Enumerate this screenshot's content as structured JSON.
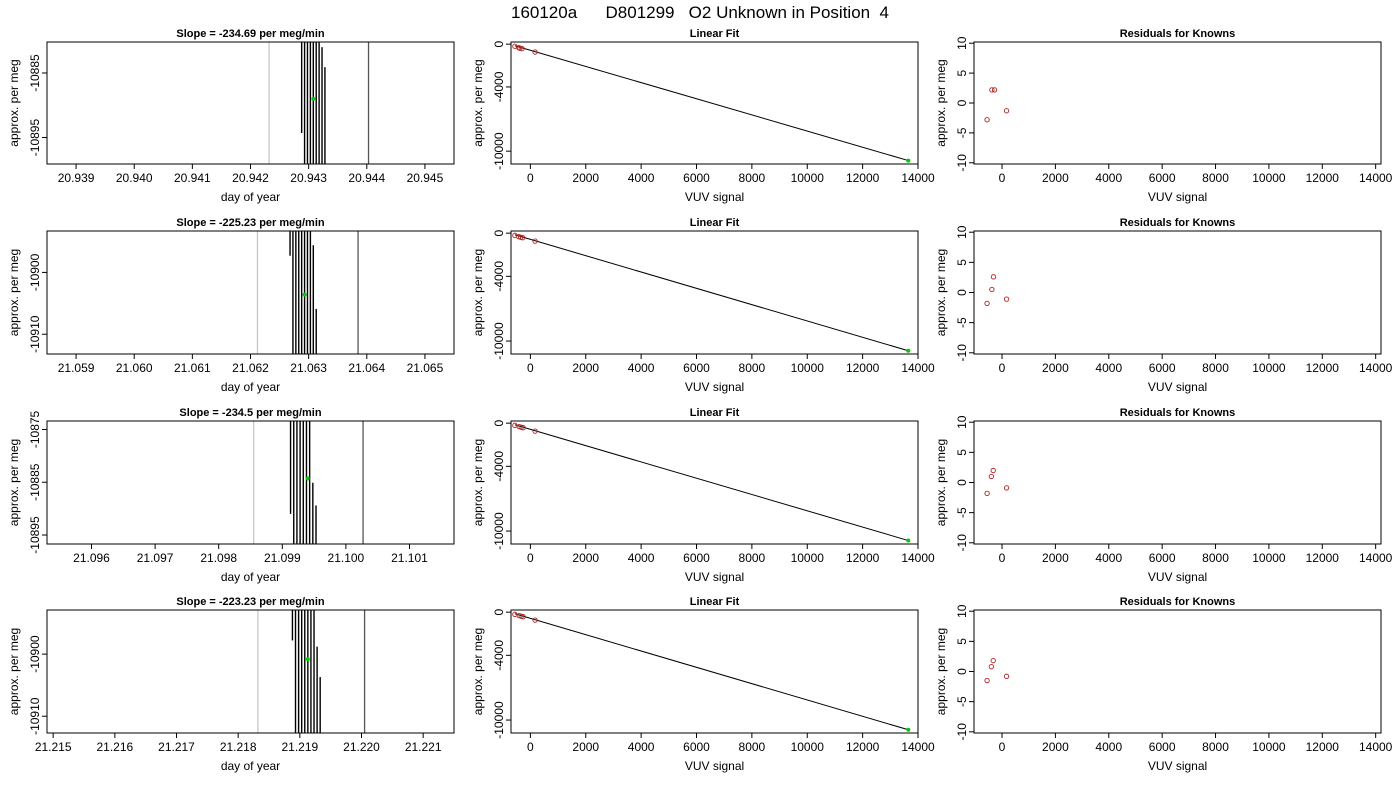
{
  "page_title": "160120a      D801299   O2 Unknown in Position  4",
  "chart_data": [
    {
      "type": "bar",
      "panel": "time",
      "row": 0,
      "title": "Slope =  -234.69  per meg/min",
      "xlabel": "day of year",
      "ylabel": "approx. per meg",
      "xlim": [
        20.9385,
        20.9455
      ],
      "ylim": [
        -10899.1,
        -10880.2
      ],
      "xticks": [
        20.939,
        20.94,
        20.941,
        20.942,
        20.943,
        20.944,
        20.945
      ],
      "xtick_labels": [
        "20.939",
        "20.940",
        "20.941",
        "20.942",
        "20.943",
        "20.944",
        "20.945"
      ],
      "yticks": [
        -10885,
        -10895
      ],
      "ytick_labels": [
        "-10885",
        "-10895"
      ],
      "vlines": [
        {
          "x": 20.94232,
          "color": "#c8c8c8"
        },
        {
          "x": 20.94403,
          "color": "#555555"
        }
      ],
      "bars": [
        {
          "x": 20.94288,
          "y0": -10880.2,
          "y1": -10894.3
        },
        {
          "x": 20.94293,
          "y0": -10880.2,
          "y1": -10899.1
        },
        {
          "x": 20.94298,
          "y0": -10880.2,
          "y1": -10899.1
        },
        {
          "x": 20.94303,
          "y0": -10880.2,
          "y1": -10899.1
        },
        {
          "x": 20.94308,
          "y0": -10880.2,
          "y1": -10899.1
        },
        {
          "x": 20.94313,
          "y0": -10880.2,
          "y1": -10899.1
        },
        {
          "x": 20.94318,
          "y0": -10880.2,
          "y1": -10899.1
        },
        {
          "x": 20.94323,
          "y0": -10881.0,
          "y1": -10899.1
        },
        {
          "x": 20.94328,
          "y0": -10884.1,
          "y1": -10899.1
        }
      ],
      "marker": {
        "x": 20.94308,
        "y": -10889.0,
        "color": "#00cc00"
      }
    },
    {
      "type": "scatter",
      "panel": "fit",
      "row": 0,
      "title": "Linear Fit",
      "xlabel": "VUV signal",
      "ylabel": "approx. per meg",
      "xlim": [
        -700,
        14000
      ],
      "ylim": [
        -11200,
        200
      ],
      "xticks": [
        0,
        2000,
        4000,
        6000,
        8000,
        10000,
        12000,
        14000
      ],
      "xtick_labels": [
        "0",
        "2000",
        "4000",
        "6000",
        "8000",
        "10000",
        "12000",
        "14000"
      ],
      "yticks": [
        0,
        -4000,
        -10000
      ],
      "ytick_labels": [
        "0",
        "-4000",
        "-10000"
      ],
      "points": [
        [
          -560,
          -200
        ],
        [
          -420,
          -330
        ],
        [
          -380,
          -380
        ],
        [
          -300,
          -420
        ],
        [
          170,
          -740
        ]
      ],
      "line": [
        [
          -560,
          -150
        ],
        [
          13650,
          -10880
        ]
      ],
      "unknown": [
        13650,
        -10880
      ]
    },
    {
      "type": "scatter",
      "panel": "resid",
      "row": 0,
      "title": "Residuals for Knowns",
      "xlabel": "VUV signal",
      "ylabel": "approx. per meg",
      "xlim": [
        -1050,
        14200
      ],
      "ylim": [
        -10.2,
        10.2
      ],
      "xticks": [
        0,
        2000,
        4000,
        6000,
        8000,
        10000,
        12000,
        14000
      ],
      "xtick_labels": [
        "0",
        "2000",
        "4000",
        "6000",
        "8000",
        "10000",
        "12000",
        "14000"
      ],
      "yticks": [
        10,
        5,
        0,
        -5,
        -10
      ],
      "ytick_labels": [
        "10",
        "5",
        "0",
        "-5",
        "-10"
      ],
      "points": [
        [
          -560,
          -2.8
        ],
        [
          -380,
          2.2
        ],
        [
          -280,
          2.2
        ],
        [
          170,
          -1.3
        ]
      ]
    },
    {
      "type": "bar",
      "panel": "time",
      "row": 1,
      "title": "Slope =  -225.23  per meg/min",
      "xlabel": "day of year",
      "ylabel": "approx. per meg",
      "xlim": [
        21.0585,
        21.0655
      ],
      "ylim": [
        -10913.2,
        -10893.3
      ],
      "xticks": [
        21.059,
        21.06,
        21.061,
        21.062,
        21.063,
        21.064,
        21.065
      ],
      "xtick_labels": [
        "21.059",
        "21.060",
        "21.061",
        "21.062",
        "21.063",
        "21.064",
        "21.065"
      ],
      "yticks": [
        -10900,
        -10910
      ],
      "ytick_labels": [
        "-10900",
        "-10910"
      ],
      "vlines": [
        {
          "x": 21.06212,
          "color": "#c8c8c8"
        },
        {
          "x": 21.06385,
          "color": "#555555"
        }
      ],
      "bars": [
        {
          "x": 21.06268,
          "y0": -10893.3,
          "y1": -10897.3
        },
        {
          "x": 21.06273,
          "y0": -10893.3,
          "y1": -10913.2
        },
        {
          "x": 21.06278,
          "y0": -10893.3,
          "y1": -10913.2
        },
        {
          "x": 21.06283,
          "y0": -10893.3,
          "y1": -10913.2
        },
        {
          "x": 21.06288,
          "y0": -10893.3,
          "y1": -10913.2
        },
        {
          "x": 21.06293,
          "y0": -10893.3,
          "y1": -10913.2
        },
        {
          "x": 21.06298,
          "y0": -10893.3,
          "y1": -10913.2
        },
        {
          "x": 21.06303,
          "y0": -10893.3,
          "y1": -10913.2
        },
        {
          "x": 21.06308,
          "y0": -10895.6,
          "y1": -10913.2
        },
        {
          "x": 21.06313,
          "y0": -10905.9,
          "y1": -10913.2
        }
      ],
      "marker": {
        "x": 21.06293,
        "y": -10903.6,
        "color": "#00cc00"
      }
    },
    {
      "type": "scatter",
      "panel": "fit",
      "row": 1,
      "title": "Linear Fit",
      "xlabel": "VUV signal",
      "ylabel": "approx. per meg",
      "xlim": [
        -700,
        14000
      ],
      "ylim": [
        -11200,
        200
      ],
      "xticks": [
        0,
        2000,
        4000,
        6000,
        8000,
        10000,
        12000,
        14000
      ],
      "xtick_labels": [
        "0",
        "2000",
        "4000",
        "6000",
        "8000",
        "10000",
        "12000",
        "14000"
      ],
      "yticks": [
        0,
        -4000,
        -10000
      ],
      "ytick_labels": [
        "0",
        "-4000",
        "-10000"
      ],
      "points": [
        [
          -560,
          -200
        ],
        [
          -420,
          -320
        ],
        [
          -350,
          -380
        ],
        [
          -280,
          -420
        ],
        [
          170,
          -740
        ]
      ],
      "line": [
        [
          -560,
          -150
        ],
        [
          13650,
          -10900
        ]
      ],
      "unknown": [
        13650,
        -10900
      ]
    },
    {
      "type": "scatter",
      "panel": "resid",
      "row": 1,
      "title": "Residuals for Knowns",
      "xlabel": "VUV signal",
      "ylabel": "approx. per meg",
      "xlim": [
        -1050,
        14200
      ],
      "ylim": [
        -10.2,
        10.2
      ],
      "xticks": [
        0,
        2000,
        4000,
        6000,
        8000,
        10000,
        12000,
        14000
      ],
      "xtick_labels": [
        "0",
        "2000",
        "4000",
        "6000",
        "8000",
        "10000",
        "12000",
        "14000"
      ],
      "yticks": [
        10,
        5,
        0,
        -5,
        -10
      ],
      "ytick_labels": [
        "10",
        "5",
        "0",
        "-5",
        "-10"
      ],
      "points": [
        [
          -560,
          -1.8
        ],
        [
          -380,
          0.5
        ],
        [
          -320,
          2.6
        ],
        [
          170,
          -1.1
        ]
      ]
    },
    {
      "type": "bar",
      "panel": "time",
      "row": 2,
      "title": "Slope =  -234.5  per meg/min",
      "xlabel": "day of year",
      "ylabel": "approx. per meg",
      "xlim": [
        21.0953,
        21.1017
      ],
      "ylim": [
        -10896.7,
        -10873.4
      ],
      "xticks": [
        21.096,
        21.097,
        21.098,
        21.099,
        21.1,
        21.101
      ],
      "xtick_labels": [
        "21.096",
        "21.097",
        "21.098",
        "21.099",
        "21.100",
        "21.101"
      ],
      "yticks": [
        -10875,
        -10885,
        -10895
      ],
      "ytick_labels": [
        "-10875",
        "-10885",
        "-10895"
      ],
      "vlines": [
        {
          "x": 21.09855,
          "color": "#c8c8c8"
        },
        {
          "x": 21.10027,
          "color": "#555555"
        }
      ],
      "bars": [
        {
          "x": 21.09913,
          "y0": -10873.4,
          "y1": -10891.0
        },
        {
          "x": 21.09918,
          "y0": -10873.4,
          "y1": -10896.7
        },
        {
          "x": 21.09923,
          "y0": -10873.4,
          "y1": -10896.7
        },
        {
          "x": 21.09928,
          "y0": -10873.4,
          "y1": -10896.7
        },
        {
          "x": 21.09933,
          "y0": -10873.4,
          "y1": -10896.7
        },
        {
          "x": 21.09938,
          "y0": -10873.4,
          "y1": -10896.7
        },
        {
          "x": 21.09943,
          "y0": -10873.4,
          "y1": -10896.7
        },
        {
          "x": 21.09948,
          "y0": -10885.1,
          "y1": -10896.7
        },
        {
          "x": 21.09953,
          "y0": -10889.4,
          "y1": -10896.7
        }
      ],
      "marker": {
        "x": 21.0994,
        "y": -10884.3,
        "color": "#00cc00"
      }
    },
    {
      "type": "scatter",
      "panel": "fit",
      "row": 2,
      "title": "Linear Fit",
      "xlabel": "VUV signal",
      "ylabel": "approx. per meg",
      "xlim": [
        -700,
        14000
      ],
      "ylim": [
        -11200,
        200
      ],
      "xticks": [
        0,
        2000,
        4000,
        6000,
        8000,
        10000,
        12000,
        14000
      ],
      "xtick_labels": [
        "0",
        "2000",
        "4000",
        "6000",
        "8000",
        "10000",
        "12000",
        "14000"
      ],
      "yticks": [
        0,
        -4000,
        -10000
      ],
      "ytick_labels": [
        "0",
        "-4000",
        "-10000"
      ],
      "points": [
        [
          -560,
          -200
        ],
        [
          -400,
          -320
        ],
        [
          -330,
          -380
        ],
        [
          -260,
          -420
        ],
        [
          170,
          -740
        ]
      ],
      "line": [
        [
          -560,
          -150
        ],
        [
          13650,
          -10880
        ]
      ],
      "unknown": [
        13650,
        -10880
      ]
    },
    {
      "type": "scatter",
      "panel": "resid",
      "row": 2,
      "title": "Residuals for Knowns",
      "xlabel": "VUV signal",
      "ylabel": "approx. per meg",
      "xlim": [
        -1050,
        14200
      ],
      "ylim": [
        -10.2,
        10.2
      ],
      "xticks": [
        0,
        2000,
        4000,
        6000,
        8000,
        10000,
        12000,
        14000
      ],
      "xtick_labels": [
        "0",
        "2000",
        "4000",
        "6000",
        "8000",
        "10000",
        "12000",
        "14000"
      ],
      "yticks": [
        10,
        5,
        0,
        -5,
        -10
      ],
      "ytick_labels": [
        "10",
        "5",
        "0",
        "-5",
        "-10"
      ],
      "points": [
        [
          -560,
          -1.8
        ],
        [
          -400,
          1.0
        ],
        [
          -330,
          2.0
        ],
        [
          170,
          -0.9
        ]
      ]
    },
    {
      "type": "bar",
      "panel": "time",
      "row": 3,
      "title": "Slope =  -223.23  per meg/min",
      "xlabel": "day of year",
      "ylabel": "approx. per meg",
      "xlim": [
        21.2149,
        21.2215
      ],
      "ylim": [
        -10912.7,
        -10892.9
      ],
      "xticks": [
        21.215,
        21.216,
        21.217,
        21.218,
        21.219,
        21.22,
        21.221
      ],
      "xtick_labels": [
        "21.215",
        "21.216",
        "21.217",
        "21.218",
        "21.219",
        "21.220",
        "21.221"
      ],
      "yticks": [
        -10900,
        -10910
      ],
      "ytick_labels": [
        "-10900",
        "-10910"
      ],
      "vlines": [
        {
          "x": 21.21832,
          "color": "#c8c8c8"
        },
        {
          "x": 21.22005,
          "color": "#555555"
        }
      ],
      "bars": [
        {
          "x": 21.21888,
          "y0": -10892.9,
          "y1": -10897.8
        },
        {
          "x": 21.21893,
          "y0": -10892.9,
          "y1": -10912.7
        },
        {
          "x": 21.21898,
          "y0": -10892.9,
          "y1": -10912.7
        },
        {
          "x": 21.21903,
          "y0": -10892.9,
          "y1": -10912.7
        },
        {
          "x": 21.21908,
          "y0": -10892.9,
          "y1": -10912.7
        },
        {
          "x": 21.21913,
          "y0": -10892.9,
          "y1": -10912.7
        },
        {
          "x": 21.21918,
          "y0": -10892.9,
          "y1": -10912.7
        },
        {
          "x": 21.21923,
          "y0": -10892.9,
          "y1": -10912.7
        },
        {
          "x": 21.21928,
          "y0": -10898.8,
          "y1": -10912.7
        },
        {
          "x": 21.21933,
          "y0": -10903.7,
          "y1": -10912.7
        }
      ],
      "marker": {
        "x": 21.21913,
        "y": -10900.8,
        "color": "#00cc00"
      }
    },
    {
      "type": "scatter",
      "panel": "fit",
      "row": 3,
      "title": "Linear Fit",
      "xlabel": "VUV signal",
      "ylabel": "approx. per meg",
      "xlim": [
        -700,
        14000
      ],
      "ylim": [
        -11200,
        200
      ],
      "xticks": [
        0,
        2000,
        4000,
        6000,
        8000,
        10000,
        12000,
        14000
      ],
      "xtick_labels": [
        "0",
        "2000",
        "4000",
        "6000",
        "8000",
        "10000",
        "12000",
        "14000"
      ],
      "yticks": [
        0,
        -4000,
        -10000
      ],
      "ytick_labels": [
        "0",
        "-4000",
        "-10000"
      ],
      "points": [
        [
          -560,
          -200
        ],
        [
          -400,
          -320
        ],
        [
          -330,
          -380
        ],
        [
          -260,
          -420
        ],
        [
          170,
          -740
        ]
      ],
      "line": [
        [
          -560,
          -150
        ],
        [
          13650,
          -10900
        ]
      ],
      "unknown": [
        13650,
        -10900
      ]
    },
    {
      "type": "scatter",
      "panel": "resid",
      "row": 3,
      "title": "Residuals for Knowns",
      "xlabel": "VUV signal",
      "ylabel": "approx. per meg",
      "xlim": [
        -1050,
        14200
      ],
      "ylim": [
        -10.2,
        10.2
      ],
      "xticks": [
        0,
        2000,
        4000,
        6000,
        8000,
        10000,
        12000,
        14000
      ],
      "xtick_labels": [
        "0",
        "2000",
        "4000",
        "6000",
        "8000",
        "10000",
        "12000",
        "14000"
      ],
      "yticks": [
        10,
        5,
        0,
        -5,
        -10
      ],
      "ytick_labels": [
        "10",
        "5",
        "0",
        "-5",
        "-10"
      ],
      "points": [
        [
          -560,
          -1.5
        ],
        [
          -400,
          0.8
        ],
        [
          -330,
          1.8
        ],
        [
          170,
          -0.8
        ]
      ]
    }
  ]
}
